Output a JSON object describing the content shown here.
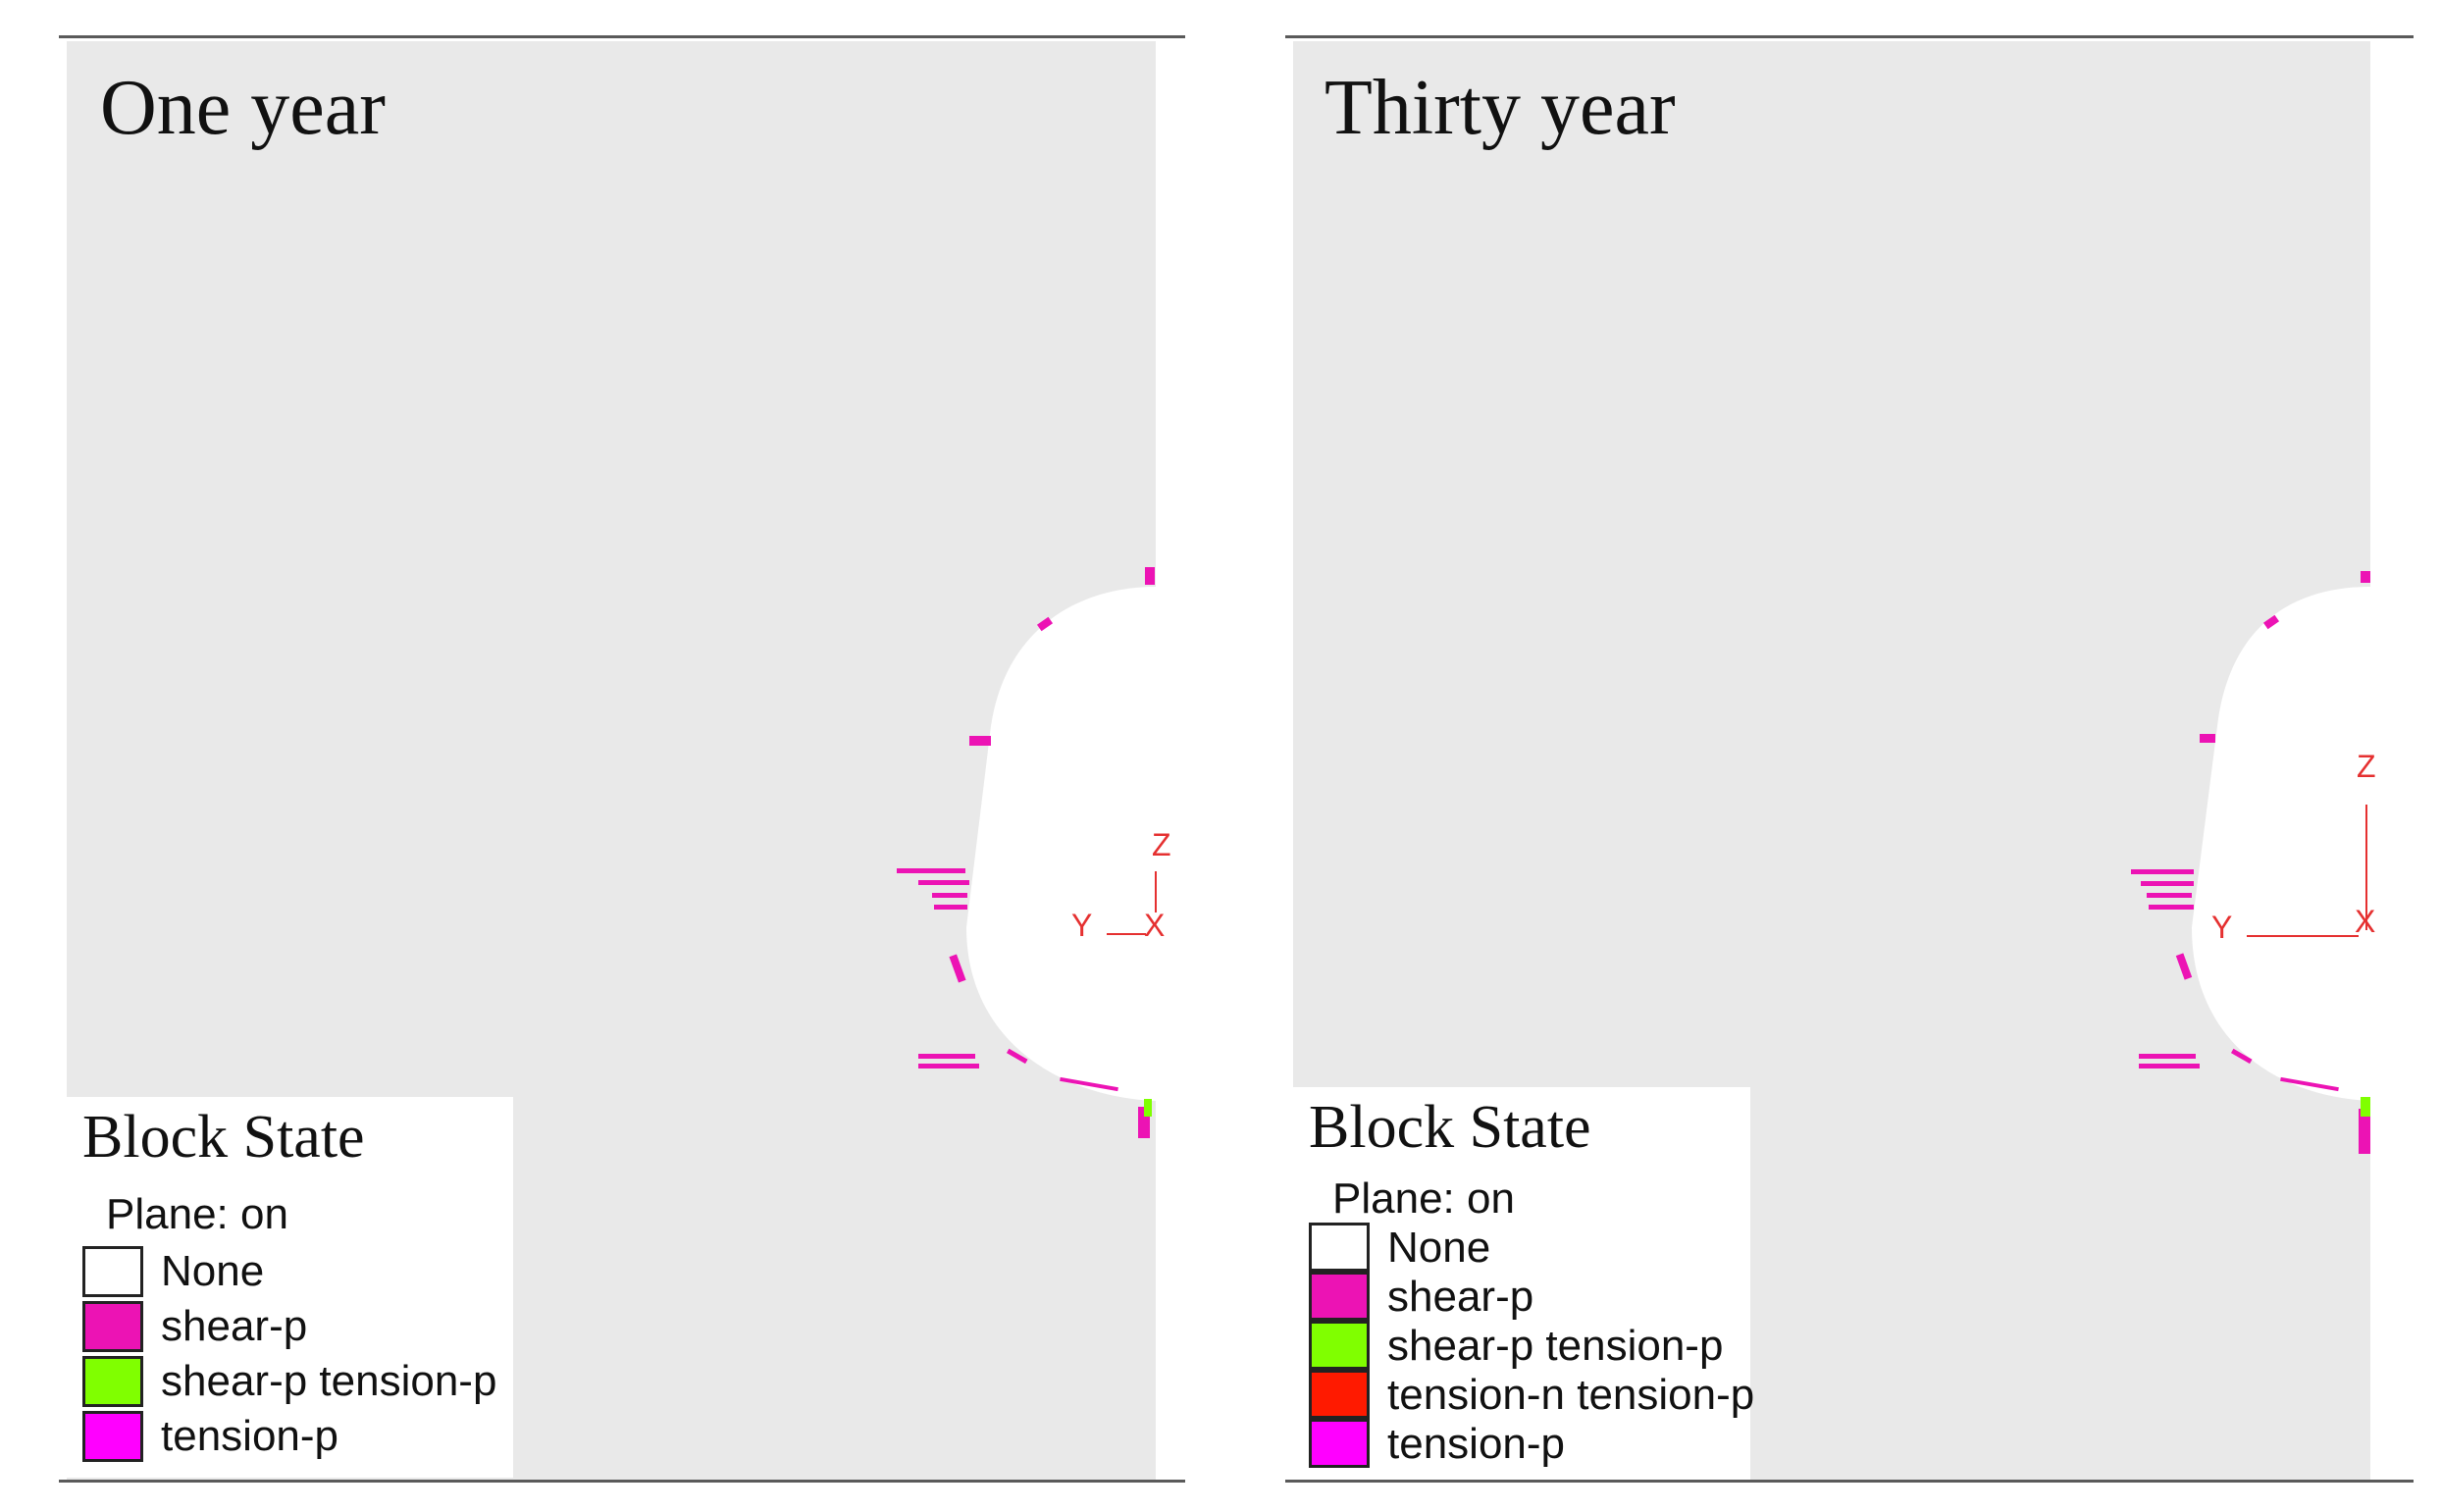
{
  "panels": [
    {
      "title": "One year",
      "legend": {
        "heading": "Block State",
        "plane": "Plane: on",
        "items": [
          {
            "label": "None",
            "color": "#ffffff"
          },
          {
            "label": "shear-p",
            "color": "#ec13b4"
          },
          {
            "label": "shear-p tension-p",
            "color": "#80ff00"
          },
          {
            "label": "tension-p",
            "color": "#ff00ff"
          }
        ]
      },
      "axes": {
        "z": "Z",
        "y": "Y",
        "x": "X"
      }
    },
    {
      "title": "Thirty year",
      "legend": {
        "heading": "Block State",
        "plane": "Plane: on",
        "items": [
          {
            "label": "None",
            "color": "#ffffff"
          },
          {
            "label": "shear-p",
            "color": "#ec13b4"
          },
          {
            "label": "shear-p tension-p",
            "color": "#80ff00"
          },
          {
            "label": "tension-n tension-p",
            "color": "#ff1a00"
          },
          {
            "label": "tension-p",
            "color": "#ff00ff"
          }
        ]
      },
      "axes": {
        "z": "Z",
        "y": "Y",
        "x": "X"
      }
    }
  ]
}
